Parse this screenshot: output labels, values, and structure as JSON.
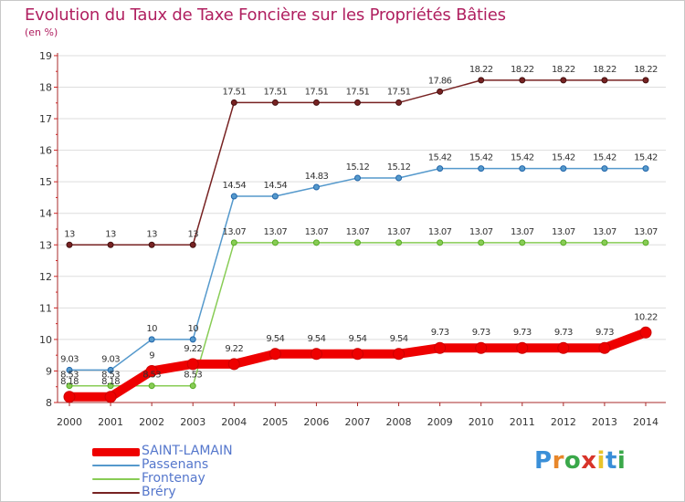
{
  "header": {
    "title": "Evolution du Taux de Taxe Foncière sur les Propriétés Bâties",
    "unit": "(en %)"
  },
  "logo": {
    "letters": [
      "P",
      "r",
      "o",
      "x",
      "i",
      "t",
      "i"
    ],
    "colors": [
      "#3a8fd8",
      "#e8872a",
      "#3aa84a",
      "#d8342a",
      "#e8c42a",
      "#3a8fd8",
      "#3aa84a"
    ]
  },
  "chart_data": {
    "type": "line",
    "title": "Evolution du Taux de Taxe Foncière sur les Propriétés Bâties",
    "ylabel": "(en %)",
    "xlabel": "",
    "x": [
      "2000",
      "2001",
      "2002",
      "2003",
      "2004",
      "2005",
      "2006",
      "2007",
      "2008",
      "2009",
      "2010",
      "2011",
      "2012",
      "2013",
      "2014"
    ],
    "ylim": [
      8,
      19
    ],
    "yticks": [
      8,
      9,
      10,
      11,
      12,
      13,
      14,
      15,
      16,
      17,
      18,
      19
    ],
    "grid": true,
    "legend_position": "bottom-left",
    "series": [
      {
        "name": "SAINT-LAMAIN",
        "color": "#ee0000",
        "values": [
          8.18,
          8.18,
          9,
          9.22,
          9.22,
          9.54,
          9.54,
          9.54,
          9.54,
          9.73,
          9.73,
          9.73,
          9.73,
          9.73,
          10.22
        ],
        "labels": [
          "8.18",
          "8.18",
          "9",
          "9.22",
          "9.22",
          "9.54",
          "9.54",
          "9.54",
          "9.54",
          "9.73",
          "9.73",
          "9.73",
          "9.73",
          "9.73",
          "10.22"
        ]
      },
      {
        "name": "Passenans",
        "color": "#5599cc",
        "values": [
          9.03,
          9.03,
          10,
          10,
          14.54,
          14.54,
          14.83,
          15.12,
          15.12,
          15.42,
          15.42,
          15.42,
          15.42,
          15.42,
          15.42
        ],
        "labels": [
          "9.03",
          "9.03",
          "10",
          "10",
          "14.54",
          "14.54",
          "14.83",
          "15.12",
          "15.12",
          "15.42",
          "15.42",
          "15.42",
          "15.42",
          "15.42",
          "15.42"
        ]
      },
      {
        "name": "Frontenay",
        "color": "#88cc55",
        "values": [
          8.53,
          8.53,
          8.53,
          8.53,
          13.07,
          13.07,
          13.07,
          13.07,
          13.07,
          13.07,
          13.07,
          13.07,
          13.07,
          13.07,
          13.07
        ],
        "labels": [
          "8.53",
          "8.53",
          "8.53",
          "8.53",
          "13.07",
          "13.07",
          "13.07",
          "13.07",
          "13.07",
          "13.07",
          "13.07",
          "13.07",
          "13.07",
          "13.07",
          "13.07"
        ]
      },
      {
        "name": "Bréry",
        "color": "#772222",
        "values": [
          13,
          13,
          13,
          13,
          17.51,
          17.51,
          17.51,
          17.51,
          17.51,
          17.86,
          18.22,
          18.22,
          18.22,
          18.22,
          18.22
        ],
        "labels": [
          "13",
          "13",
          "13",
          "13",
          "17.51",
          "17.51",
          "17.51",
          "17.51",
          "17.51",
          "17.86",
          "18.22",
          "18.22",
          "18.22",
          "18.22",
          "18.22"
        ]
      }
    ]
  }
}
